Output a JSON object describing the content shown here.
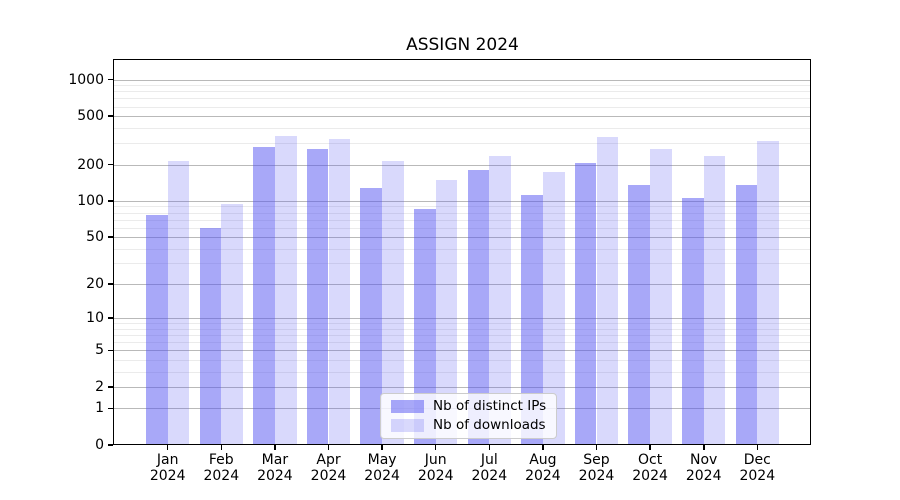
{
  "chart_data": {
    "type": "bar",
    "title": "ASSIGN 2024",
    "categories": [
      "Jan 2024",
      "Feb 2024",
      "Mar 2024",
      "Apr 2024",
      "May 2024",
      "Jun 2024",
      "Jul 2024",
      "Aug 2024",
      "Sep 2024",
      "Oct 2024",
      "Nov 2024",
      "Dec 2024"
    ],
    "series": [
      {
        "name": "Nb of distinct IPs",
        "color": "#5252f2",
        "alpha": 0.5,
        "values": [
          76,
          59,
          278,
          268,
          128,
          85,
          180,
          112,
          204,
          136,
          105,
          135
        ]
      },
      {
        "name": "Nb of downloads",
        "color": "#5252f2",
        "alpha": 0.22,
        "values": [
          215,
          94,
          341,
          326,
          215,
          148,
          236,
          173,
          336,
          270,
          233,
          315
        ]
      }
    ],
    "xlabel": "",
    "ylabel": "",
    "y_scale": "log1p",
    "y_ticks": [
      0,
      1,
      2,
      5,
      10,
      20,
      50,
      100,
      200,
      500,
      1000
    ],
    "y_minor_ticks": [
      3,
      4,
      6,
      7,
      8,
      9,
      30,
      40,
      60,
      70,
      80,
      90,
      300,
      400,
      600,
      700,
      800,
      900
    ],
    "ylim": [
      0,
      1448
    ],
    "grid": true,
    "legend_position": "lower center",
    "colors": {
      "grid_major": "#b9b9b9",
      "grid_minor": "#ebebeb",
      "axis": "#000000",
      "background": "#ffffff"
    }
  }
}
